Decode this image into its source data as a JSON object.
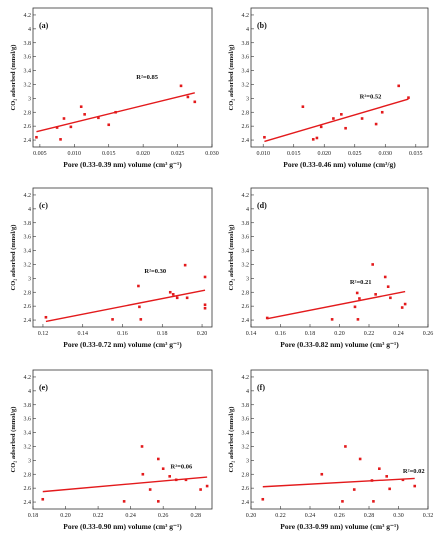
{
  "chart_data": [
    {
      "type": "scatter",
      "panel_label": "(a)",
      "xlabel": "Pore (0.33-0.39 nm) volume (cm³ g⁻¹)",
      "ylabel": "CO₂ adsorbed (mmol/g)",
      "xlim": [
        0.004,
        0.03
      ],
      "ylim": [
        2.3,
        4.3
      ],
      "xticks": [
        0.005,
        0.01,
        0.015,
        0.02,
        0.025,
        0.03
      ],
      "xtick_labels": [
        "0.005",
        "0.010",
        "0.015",
        "0.020",
        "0.025",
        "0.030"
      ],
      "yticks": [
        2.4,
        2.6,
        2.8,
        3.0,
        3.2,
        3.4,
        3.6,
        3.8,
        4.0,
        4.2
      ],
      "ytick_labels": [
        "2.4",
        "2.6",
        "2.8",
        "3",
        "3.2",
        "3.4",
        "3.6",
        "3.8",
        "4",
        "4.2"
      ],
      "points": [
        [
          0.0045,
          2.44
        ],
        [
          0.0075,
          2.58
        ],
        [
          0.008,
          2.41
        ],
        [
          0.0085,
          2.71
        ],
        [
          0.0095,
          2.59
        ],
        [
          0.011,
          2.88
        ],
        [
          0.0115,
          2.77
        ],
        [
          0.0135,
          2.72
        ],
        [
          0.015,
          2.62
        ],
        [
          0.016,
          2.8
        ],
        [
          0.0255,
          3.18
        ],
        [
          0.0265,
          3.02
        ],
        [
          0.0275,
          2.95
        ]
      ],
      "fit": [
        [
          0.0045,
          2.52
        ],
        [
          0.0275,
          3.08
        ]
      ],
      "r2_label": "R²=0.85",
      "r2_pos": [
        0.019,
        3.28
      ]
    },
    {
      "type": "scatter",
      "panel_label": "(b)",
      "xlabel": "Pore (0.33-0.46 nm) volume (cm³/g)",
      "ylabel": "CO₂ adsorbed (mmol/g)",
      "xlim": [
        0.008,
        0.037
      ],
      "ylim": [
        2.3,
        4.3
      ],
      "xticks": [
        0.01,
        0.015,
        0.02,
        0.025,
        0.03,
        0.035
      ],
      "xtick_labels": [
        "0.010",
        "0.015",
        "0.020",
        "0.025",
        "0.030",
        "0.035"
      ],
      "yticks": [
        2.4,
        2.6,
        2.8,
        3.0,
        3.2,
        3.4,
        3.6,
        3.8,
        4.0,
        4.2
      ],
      "ytick_labels": [
        "2.4",
        "2.6",
        "2.8",
        "3",
        "3.2",
        "3.4",
        "3.6",
        "3.8",
        "4",
        "4.2"
      ],
      "points": [
        [
          0.0102,
          2.44
        ],
        [
          0.0165,
          2.88
        ],
        [
          0.0182,
          2.41
        ],
        [
          0.0188,
          2.43
        ],
        [
          0.0195,
          2.59
        ],
        [
          0.0215,
          2.71
        ],
        [
          0.0228,
          2.77
        ],
        [
          0.0235,
          2.57
        ],
        [
          0.0262,
          2.71
        ],
        [
          0.0285,
          2.63
        ],
        [
          0.0295,
          2.8
        ],
        [
          0.0322,
          3.18
        ],
        [
          0.0338,
          3.01
        ]
      ],
      "fit": [
        [
          0.0102,
          2.38
        ],
        [
          0.0338,
          2.99
        ]
      ],
      "r2_label": "R²=0.52",
      "r2_pos": [
        0.0258,
        3.0
      ]
    },
    {
      "type": "scatter",
      "panel_label": "(c)",
      "xlabel": "Pore (0.33-0.72 nm) volume (cm³ g⁻¹)",
      "ylabel": "CO₂ adsorbed (mmol/g)",
      "xlim": [
        0.115,
        0.205
      ],
      "ylim": [
        2.3,
        4.3
      ],
      "xticks": [
        0.12,
        0.14,
        0.16,
        0.18,
        0.2
      ],
      "xtick_labels": [
        "0.12",
        "0.14",
        "0.16",
        "0.18",
        "0.20"
      ],
      "yticks": [
        2.4,
        2.6,
        2.8,
        3.0,
        3.2,
        3.4,
        3.6,
        3.8,
        4.0,
        4.2
      ],
      "ytick_labels": [
        "2.4",
        "2.6",
        "2.8",
        "3",
        "3.2",
        "3.4",
        "3.6",
        "3.8",
        "4",
        "4.2"
      ],
      "points": [
        [
          0.1215,
          2.44
        ],
        [
          0.155,
          2.41
        ],
        [
          0.168,
          2.89
        ],
        [
          0.1685,
          2.59
        ],
        [
          0.1692,
          2.41
        ],
        [
          0.184,
          2.8
        ],
        [
          0.1855,
          2.77
        ],
        [
          0.1875,
          2.72
        ],
        [
          0.1915,
          3.19
        ],
        [
          0.1925,
          2.72
        ],
        [
          0.2015,
          3.02
        ],
        [
          0.2015,
          2.62
        ],
        [
          0.2015,
          2.57
        ]
      ],
      "fit": [
        [
          0.1215,
          2.38
        ],
        [
          0.2015,
          2.83
        ]
      ],
      "r2_label": "R²=0.30",
      "r2_pos": [
        0.171,
        3.08
      ]
    },
    {
      "type": "scatter",
      "panel_label": "(d)",
      "xlabel": "Pore (0.33-0.82 nm) volume (cm³ g⁻¹)",
      "ylabel": "CO₂ adsorbed (mmol/g)",
      "xlim": [
        0.14,
        0.26
      ],
      "ylim": [
        2.3,
        4.3
      ],
      "xticks": [
        0.14,
        0.16,
        0.18,
        0.2,
        0.22,
        0.24,
        0.26
      ],
      "xtick_labels": [
        "0.14",
        "0.16",
        "0.18",
        "0.20",
        "0.22",
        "0.24",
        "0.26"
      ],
      "yticks": [
        2.4,
        2.6,
        2.8,
        3.0,
        3.2,
        3.4,
        3.6,
        3.8,
        4.0,
        4.2
      ],
      "ytick_labels": [
        "2.4",
        "2.6",
        "2.8",
        "3",
        "3.2",
        "3.4",
        "3.6",
        "3.8",
        "4",
        "4.2"
      ],
      "points": [
        [
          0.151,
          2.43
        ],
        [
          0.195,
          2.41
        ],
        [
          0.2105,
          2.59
        ],
        [
          0.212,
          2.79
        ],
        [
          0.2125,
          2.41
        ],
        [
          0.2135,
          2.71
        ],
        [
          0.2225,
          3.2
        ],
        [
          0.2245,
          2.77
        ],
        [
          0.231,
          3.02
        ],
        [
          0.233,
          2.88
        ],
        [
          0.2345,
          2.72
        ],
        [
          0.2425,
          2.58
        ],
        [
          0.2445,
          2.63
        ]
      ],
      "fit": [
        [
          0.151,
          2.42
        ],
        [
          0.2445,
          2.81
        ]
      ],
      "r2_label": "R²=0.21",
      "r2_pos": [
        0.207,
        2.92
      ]
    },
    {
      "type": "scatter",
      "panel_label": "(e)",
      "xlabel": "Pore (0.33-0.90 nm) volume (cm³ g⁻¹)",
      "ylabel": "CO₂ adsorbed (mmol/g)",
      "xlim": [
        0.18,
        0.29
      ],
      "ylim": [
        2.3,
        4.3
      ],
      "xticks": [
        0.18,
        0.2,
        0.22,
        0.24,
        0.26,
        0.28
      ],
      "xtick_labels": [
        "0.18",
        "0.20",
        "0.22",
        "0.24",
        "0.26",
        "0.28"
      ],
      "yticks": [
        2.4,
        2.6,
        2.8,
        3.0,
        3.2,
        3.4,
        3.6,
        3.8,
        4.0,
        4.2
      ],
      "ytick_labels": [
        "2.4",
        "2.6",
        "2.8",
        "3",
        "3.2",
        "3.4",
        "3.6",
        "3.8",
        "4",
        "4.2"
      ],
      "points": [
        [
          0.186,
          2.44
        ],
        [
          0.236,
          2.41
        ],
        [
          0.247,
          3.2
        ],
        [
          0.2475,
          2.8
        ],
        [
          0.252,
          2.58
        ],
        [
          0.257,
          3.02
        ],
        [
          0.257,
          2.41
        ],
        [
          0.26,
          2.88
        ],
        [
          0.264,
          2.77
        ],
        [
          0.268,
          2.72
        ],
        [
          0.274,
          2.72
        ],
        [
          0.283,
          2.58
        ],
        [
          0.287,
          2.63
        ]
      ],
      "fit": [
        [
          0.186,
          2.55
        ],
        [
          0.287,
          2.76
        ]
      ],
      "r2_label": "R²=0.06",
      "r2_pos": [
        0.2645,
        2.88
      ]
    },
    {
      "type": "scatter",
      "panel_label": "(f)",
      "xlabel": "Pore (0.33-0.99 nm) volume (cm³ g⁻¹)",
      "ylabel": "CO₂ adsorbed (mmol/g)",
      "xlim": [
        0.2,
        0.32
      ],
      "ylim": [
        2.3,
        4.3
      ],
      "xticks": [
        0.2,
        0.22,
        0.24,
        0.26,
        0.28,
        0.3,
        0.32
      ],
      "xtick_labels": [
        "0.20",
        "0.22",
        "0.24",
        "0.26",
        "0.28",
        "0.30",
        "0.32"
      ],
      "yticks": [
        2.4,
        2.6,
        2.8,
        3.0,
        3.2,
        3.4,
        3.6,
        3.8,
        4.0,
        4.2
      ],
      "ytick_labels": [
        "2.4",
        "2.6",
        "2.8",
        "3",
        "3.2",
        "3.4",
        "3.6",
        "3.8",
        "4",
        "4.2"
      ],
      "points": [
        [
          0.208,
          2.44
        ],
        [
          0.248,
          2.8
        ],
        [
          0.262,
          2.41
        ],
        [
          0.264,
          3.2
        ],
        [
          0.27,
          2.58
        ],
        [
          0.274,
          3.02
        ],
        [
          0.282,
          2.71
        ],
        [
          0.283,
          2.41
        ],
        [
          0.287,
          2.88
        ],
        [
          0.292,
          2.77
        ],
        [
          0.294,
          2.59
        ],
        [
          0.303,
          2.72
        ],
        [
          0.311,
          2.63
        ]
      ],
      "fit": [
        [
          0.208,
          2.62
        ],
        [
          0.311,
          2.74
        ]
      ],
      "r2_label": "R²=0.02",
      "r2_pos": [
        0.303,
        2.82
      ]
    }
  ],
  "colors": {
    "point": "#e31a1c",
    "line": "#e31a1c",
    "axis": "#333333"
  }
}
